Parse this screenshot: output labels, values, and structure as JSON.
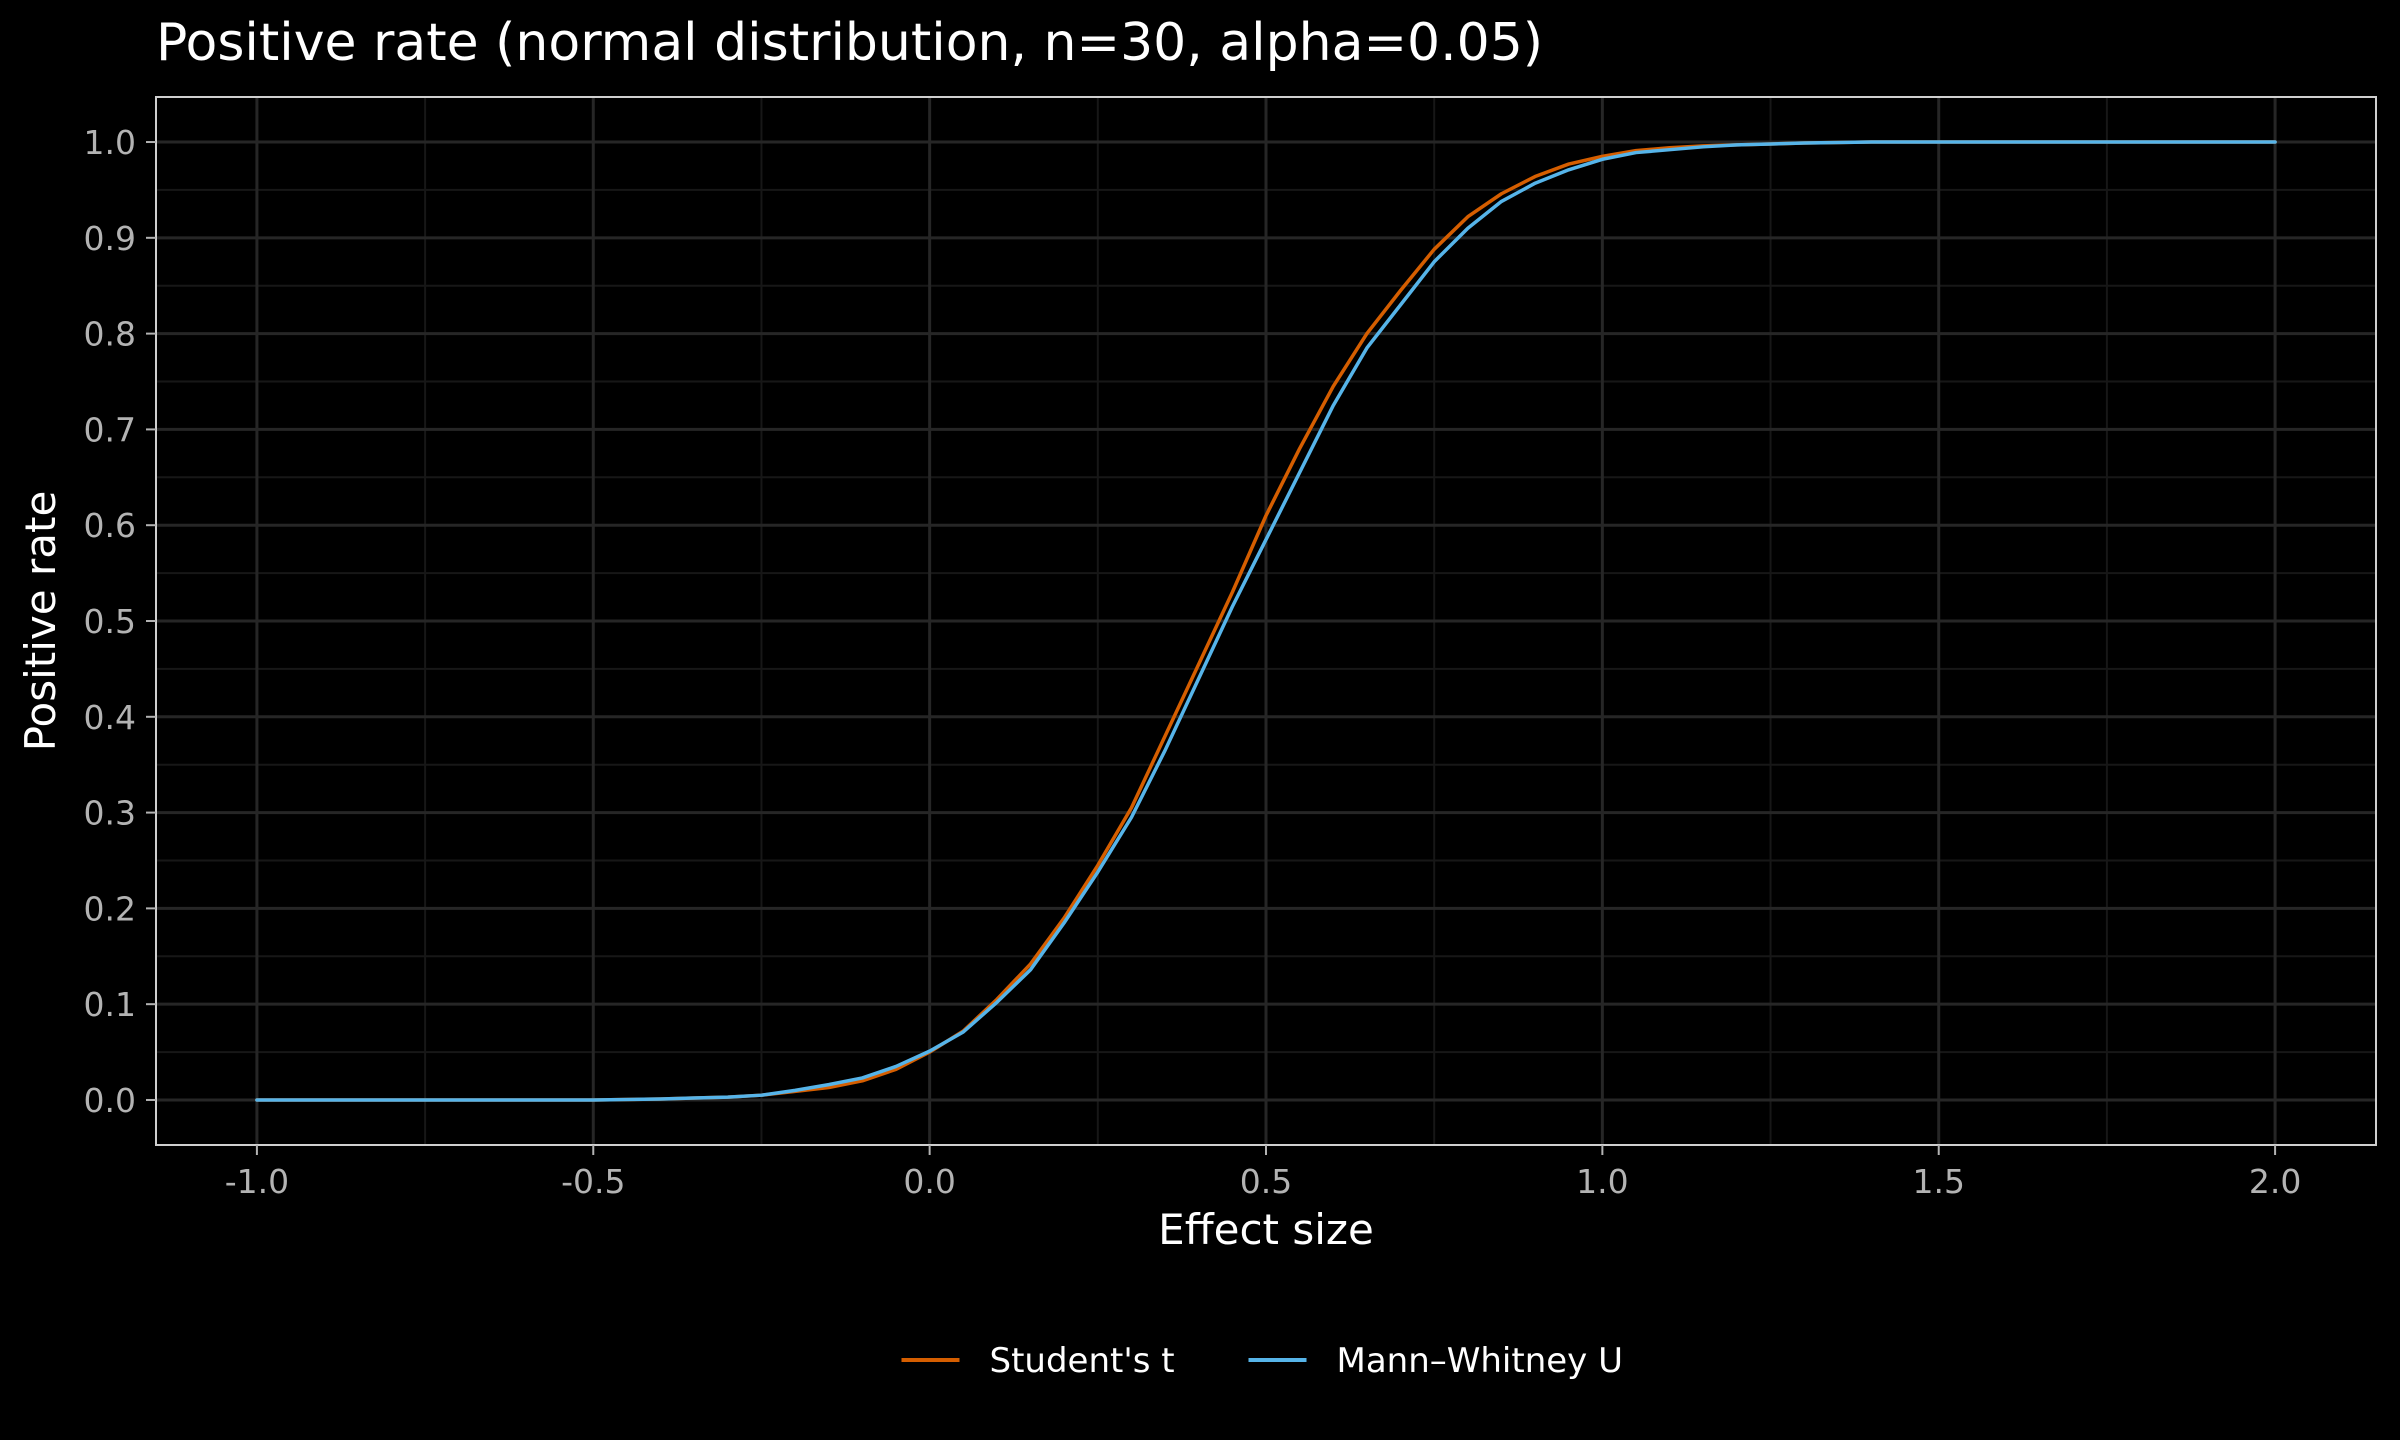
{
  "chart_data": {
    "type": "line",
    "title": "Positive rate (normal distribution, n=30, alpha=0.05)",
    "xlabel": "Effect size",
    "ylabel": "Positive rate",
    "xlim": [
      -1.15,
      2.15
    ],
    "ylim": [
      -0.047,
      1.047
    ],
    "x_ticks": [
      -1.0,
      -0.5,
      0.0,
      0.5,
      1.0,
      1.5,
      2.0
    ],
    "x_tick_labels": [
      "-1.0",
      "-0.5",
      "0.0",
      "0.5",
      "1.0",
      "1.5",
      "2.0"
    ],
    "y_ticks": [
      0.0,
      0.1,
      0.2,
      0.3,
      0.4,
      0.5,
      0.6,
      0.7,
      0.8,
      0.9,
      1.0
    ],
    "y_tick_labels": [
      "0.0",
      "0.1",
      "0.2",
      "0.3",
      "0.4",
      "0.5",
      "0.6",
      "0.7",
      "0.8",
      "0.9",
      "1.0"
    ],
    "grid": true,
    "legend_position": "bottom",
    "background": "#000000",
    "series": [
      {
        "name": "Student's t",
        "color": "#d55e00",
        "x": [
          -1.0,
          -0.9,
          -0.8,
          -0.7,
          -0.6,
          -0.5,
          -0.4,
          -0.35,
          -0.3,
          -0.25,
          -0.2,
          -0.15,
          -0.1,
          -0.05,
          0.0,
          0.05,
          0.1,
          0.15,
          0.2,
          0.25,
          0.3,
          0.35,
          0.4,
          0.45,
          0.5,
          0.55,
          0.6,
          0.65,
          0.7,
          0.75,
          0.8,
          0.85,
          0.9,
          0.95,
          1.0,
          1.05,
          1.1,
          1.15,
          1.2,
          1.25,
          1.3,
          1.4,
          1.5,
          1.6,
          1.7,
          1.8,
          1.9,
          2.0
        ],
        "values": [
          0.0,
          0.0,
          0.0,
          0.0,
          0.0,
          0.0,
          0.001,
          0.002,
          0.003,
          0.005,
          0.009,
          0.013,
          0.02,
          0.032,
          0.05,
          0.072,
          0.105,
          0.142,
          0.19,
          0.245,
          0.305,
          0.38,
          0.455,
          0.53,
          0.61,
          0.68,
          0.745,
          0.8,
          0.845,
          0.888,
          0.922,
          0.946,
          0.964,
          0.977,
          0.985,
          0.991,
          0.994,
          0.996,
          0.997,
          0.998,
          0.999,
          1.0,
          1.0,
          1.0,
          1.0,
          1.0,
          1.0,
          1.0
        ]
      },
      {
        "name": "Mann–Whitney U",
        "color": "#56b4e9",
        "x": [
          -1.0,
          -0.9,
          -0.8,
          -0.7,
          -0.6,
          -0.5,
          -0.4,
          -0.35,
          -0.3,
          -0.25,
          -0.2,
          -0.15,
          -0.1,
          -0.05,
          0.0,
          0.05,
          0.1,
          0.15,
          0.2,
          0.25,
          0.3,
          0.35,
          0.4,
          0.45,
          0.5,
          0.55,
          0.6,
          0.65,
          0.7,
          0.75,
          0.8,
          0.85,
          0.9,
          0.95,
          1.0,
          1.05,
          1.1,
          1.15,
          1.2,
          1.25,
          1.3,
          1.4,
          1.5,
          1.6,
          1.7,
          1.8,
          1.9,
          2.0
        ],
        "values": [
          0.0,
          0.0,
          0.0,
          0.0,
          0.0,
          0.0,
          0.001,
          0.002,
          0.003,
          0.005,
          0.01,
          0.016,
          0.023,
          0.035,
          0.051,
          0.071,
          0.102,
          0.136,
          0.185,
          0.238,
          0.295,
          0.365,
          0.44,
          0.515,
          0.585,
          0.655,
          0.725,
          0.785,
          0.83,
          0.875,
          0.91,
          0.938,
          0.957,
          0.971,
          0.982,
          0.989,
          0.992,
          0.995,
          0.997,
          0.998,
          0.999,
          1.0,
          1.0,
          1.0,
          1.0,
          1.0,
          1.0,
          1.0
        ]
      }
    ]
  }
}
